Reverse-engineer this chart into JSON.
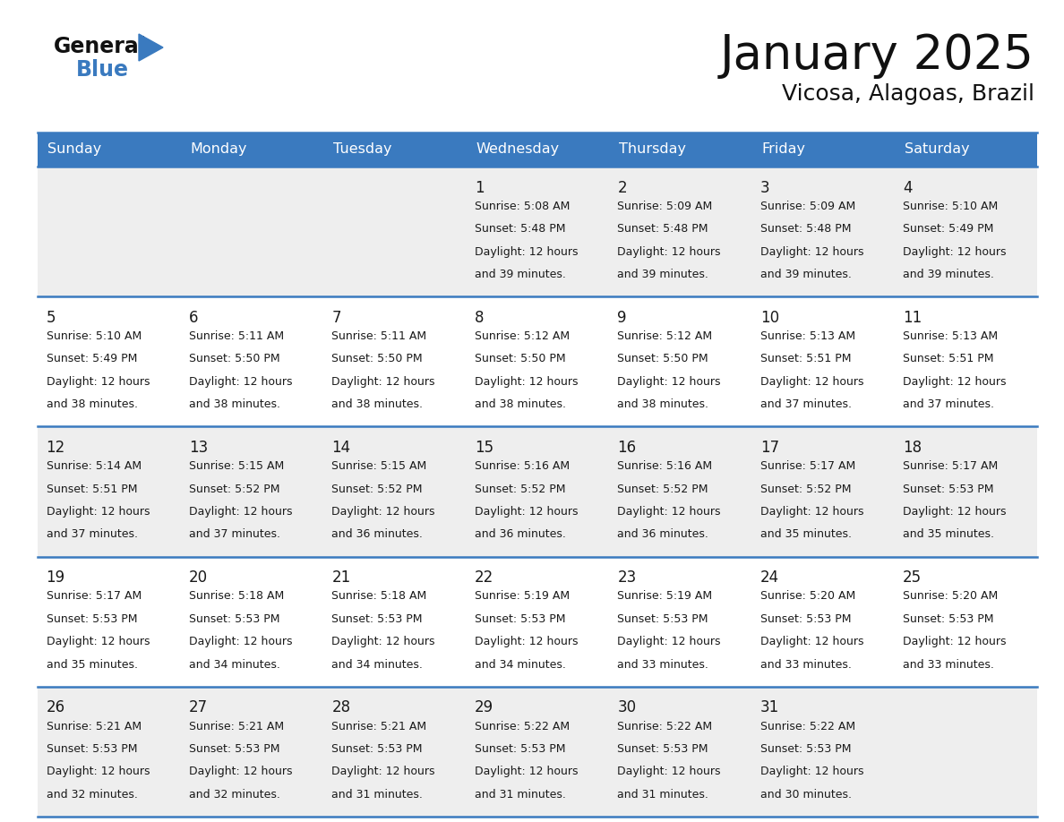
{
  "title": "January 2025",
  "subtitle": "Vicosa, Alagoas, Brazil",
  "header_color": "#3a7abf",
  "header_text_color": "#ffffff",
  "cell_bg_light": "#eeeeee",
  "cell_bg_white": "#ffffff",
  "row_line_color": "#3a7abf",
  "text_color": "#1a1a1a",
  "days_of_week": [
    "Sunday",
    "Monday",
    "Tuesday",
    "Wednesday",
    "Thursday",
    "Friday",
    "Saturday"
  ],
  "calendar": [
    [
      {
        "day": "",
        "sunrise": "",
        "sunset": "",
        "daylight_mins": ""
      },
      {
        "day": "",
        "sunrise": "",
        "sunset": "",
        "daylight_mins": ""
      },
      {
        "day": "",
        "sunrise": "",
        "sunset": "",
        "daylight_mins": ""
      },
      {
        "day": "1",
        "sunrise": "5:08 AM",
        "sunset": "5:48 PM",
        "daylight_mins": "and 39 minutes."
      },
      {
        "day": "2",
        "sunrise": "5:09 AM",
        "sunset": "5:48 PM",
        "daylight_mins": "and 39 minutes."
      },
      {
        "day": "3",
        "sunrise": "5:09 AM",
        "sunset": "5:48 PM",
        "daylight_mins": "and 39 minutes."
      },
      {
        "day": "4",
        "sunrise": "5:10 AM",
        "sunset": "5:49 PM",
        "daylight_mins": "and 39 minutes."
      }
    ],
    [
      {
        "day": "5",
        "sunrise": "5:10 AM",
        "sunset": "5:49 PM",
        "daylight_mins": "and 38 minutes."
      },
      {
        "day": "6",
        "sunrise": "5:11 AM",
        "sunset": "5:50 PM",
        "daylight_mins": "and 38 minutes."
      },
      {
        "day": "7",
        "sunrise": "5:11 AM",
        "sunset": "5:50 PM",
        "daylight_mins": "and 38 minutes."
      },
      {
        "day": "8",
        "sunrise": "5:12 AM",
        "sunset": "5:50 PM",
        "daylight_mins": "and 38 minutes."
      },
      {
        "day": "9",
        "sunrise": "5:12 AM",
        "sunset": "5:50 PM",
        "daylight_mins": "and 38 minutes."
      },
      {
        "day": "10",
        "sunrise": "5:13 AM",
        "sunset": "5:51 PM",
        "daylight_mins": "and 37 minutes."
      },
      {
        "day": "11",
        "sunrise": "5:13 AM",
        "sunset": "5:51 PM",
        "daylight_mins": "and 37 minutes."
      }
    ],
    [
      {
        "day": "12",
        "sunrise": "5:14 AM",
        "sunset": "5:51 PM",
        "daylight_mins": "and 37 minutes."
      },
      {
        "day": "13",
        "sunrise": "5:15 AM",
        "sunset": "5:52 PM",
        "daylight_mins": "and 37 minutes."
      },
      {
        "day": "14",
        "sunrise": "5:15 AM",
        "sunset": "5:52 PM",
        "daylight_mins": "and 36 minutes."
      },
      {
        "day": "15",
        "sunrise": "5:16 AM",
        "sunset": "5:52 PM",
        "daylight_mins": "and 36 minutes."
      },
      {
        "day": "16",
        "sunrise": "5:16 AM",
        "sunset": "5:52 PM",
        "daylight_mins": "and 36 minutes."
      },
      {
        "day": "17",
        "sunrise": "5:17 AM",
        "sunset": "5:52 PM",
        "daylight_mins": "and 35 minutes."
      },
      {
        "day": "18",
        "sunrise": "5:17 AM",
        "sunset": "5:53 PM",
        "daylight_mins": "and 35 minutes."
      }
    ],
    [
      {
        "day": "19",
        "sunrise": "5:17 AM",
        "sunset": "5:53 PM",
        "daylight_mins": "and 35 minutes."
      },
      {
        "day": "20",
        "sunrise": "5:18 AM",
        "sunset": "5:53 PM",
        "daylight_mins": "and 34 minutes."
      },
      {
        "day": "21",
        "sunrise": "5:18 AM",
        "sunset": "5:53 PM",
        "daylight_mins": "and 34 minutes."
      },
      {
        "day": "22",
        "sunrise": "5:19 AM",
        "sunset": "5:53 PM",
        "daylight_mins": "and 34 minutes."
      },
      {
        "day": "23",
        "sunrise": "5:19 AM",
        "sunset": "5:53 PM",
        "daylight_mins": "and 33 minutes."
      },
      {
        "day": "24",
        "sunrise": "5:20 AM",
        "sunset": "5:53 PM",
        "daylight_mins": "and 33 minutes."
      },
      {
        "day": "25",
        "sunrise": "5:20 AM",
        "sunset": "5:53 PM",
        "daylight_mins": "and 33 minutes."
      }
    ],
    [
      {
        "day": "26",
        "sunrise": "5:21 AM",
        "sunset": "5:53 PM",
        "daylight_mins": "and 32 minutes."
      },
      {
        "day": "27",
        "sunrise": "5:21 AM",
        "sunset": "5:53 PM",
        "daylight_mins": "and 32 minutes."
      },
      {
        "day": "28",
        "sunrise": "5:21 AM",
        "sunset": "5:53 PM",
        "daylight_mins": "and 31 minutes."
      },
      {
        "day": "29",
        "sunrise": "5:22 AM",
        "sunset": "5:53 PM",
        "daylight_mins": "and 31 minutes."
      },
      {
        "day": "30",
        "sunrise": "5:22 AM",
        "sunset": "5:53 PM",
        "daylight_mins": "and 31 minutes."
      },
      {
        "day": "31",
        "sunrise": "5:22 AM",
        "sunset": "5:53 PM",
        "daylight_mins": "and 30 minutes."
      },
      {
        "day": "",
        "sunrise": "",
        "sunset": "",
        "daylight_mins": ""
      }
    ]
  ]
}
